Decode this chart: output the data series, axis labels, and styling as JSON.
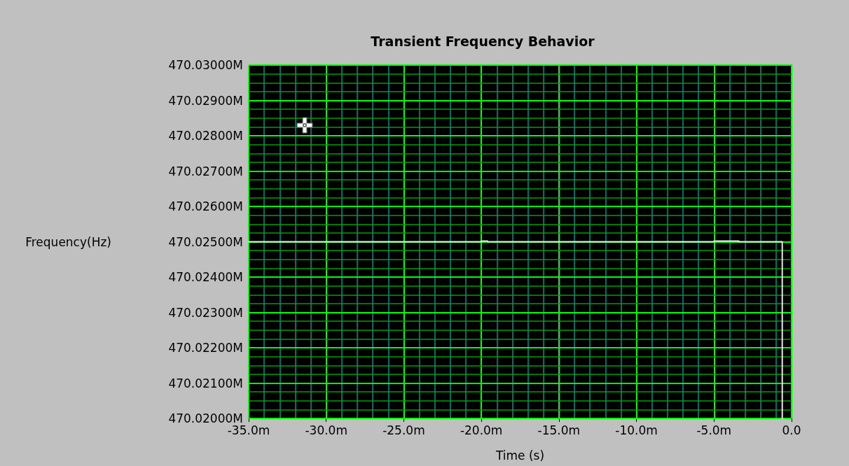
{
  "chart_data": {
    "type": "line",
    "title": "Transient Frequency Behavior",
    "xlabel": "Time (s)",
    "ylabel": "Frequency(Hz)",
    "series": [
      {
        "color": "#e8e8e8",
        "x": [
          -35,
          -20,
          -20,
          -19.6,
          -19.6,
          -5,
          -5,
          -3.4,
          -3.4,
          -0.6,
          -0.6
        ],
        "values": [
          470025000,
          470025000,
          470025020,
          470025020,
          470025000,
          470025000,
          470025020,
          470025020,
          470025000,
          470025000,
          470020000
        ]
      }
    ],
    "xlim": [
      -35,
      0
    ],
    "xticks": [
      {
        "value": -35,
        "label": "-35.0m"
      },
      {
        "value": -34,
        "label": null
      },
      {
        "value": -33,
        "label": null
      },
      {
        "value": -32,
        "label": null
      },
      {
        "value": -31,
        "label": null
      },
      {
        "value": -30,
        "label": "-30.0m"
      },
      {
        "value": -29,
        "label": null
      },
      {
        "value": -28,
        "label": null
      },
      {
        "value": -27,
        "label": null
      },
      {
        "value": -26,
        "label": null
      },
      {
        "value": -25,
        "label": "-25.0m"
      },
      {
        "value": -24,
        "label": null
      },
      {
        "value": -23,
        "label": null
      },
      {
        "value": -22,
        "label": null
      },
      {
        "value": -21,
        "label": null
      },
      {
        "value": -20,
        "label": "-20.0m"
      },
      {
        "value": -19,
        "label": null
      },
      {
        "value": -18,
        "label": null
      },
      {
        "value": -17,
        "label": null
      },
      {
        "value": -16,
        "label": null
      },
      {
        "value": -15,
        "label": "-15.0m"
      },
      {
        "value": -14,
        "label": null
      },
      {
        "value": -13,
        "label": null
      },
      {
        "value": -12,
        "label": null
      },
      {
        "value": -11,
        "label": null
      },
      {
        "value": -10,
        "label": "-10.0m"
      },
      {
        "value": -9,
        "label": null
      },
      {
        "value": -8,
        "label": null
      },
      {
        "value": -7,
        "label": null
      },
      {
        "value": -6,
        "label": null
      },
      {
        "value": -5,
        "label": "-5.0m"
      },
      {
        "value": -4,
        "label": null
      },
      {
        "value": -3,
        "label": null
      },
      {
        "value": -2,
        "label": null
      },
      {
        "value": -1,
        "label": null
      },
      {
        "value": 0,
        "label": "0.0"
      }
    ],
    "ylim": [
      470020000,
      470030000
    ],
    "yticks": [
      {
        "value": 470020000,
        "label": "470.02000M"
      },
      {
        "value": 470020250,
        "label": null
      },
      {
        "value": 470020500,
        "label": null
      },
      {
        "value": 470020750,
        "label": null
      },
      {
        "value": 470021000,
        "label": "470.02100M"
      },
      {
        "value": 470021250,
        "label": null
      },
      {
        "value": 470021500,
        "label": null
      },
      {
        "value": 470021750,
        "label": null
      },
      {
        "value": 470022000,
        "label": "470.02200M"
      },
      {
        "value": 470022250,
        "label": null
      },
      {
        "value": 470022500,
        "label": null
      },
      {
        "value": 470022750,
        "label": null
      },
      {
        "value": 470023000,
        "label": "470.02300M"
      },
      {
        "value": 470023250,
        "label": null
      },
      {
        "value": 470023500,
        "label": null
      },
      {
        "value": 470023750,
        "label": null
      },
      {
        "value": 470024000,
        "label": "470.02400M"
      },
      {
        "value": 470024250,
        "label": null
      },
      {
        "value": 470024500,
        "label": null
      },
      {
        "value": 470024750,
        "label": null
      },
      {
        "value": 470025000,
        "label": "470.02500M"
      },
      {
        "value": 470025250,
        "label": null
      },
      {
        "value": 470025500,
        "label": null
      },
      {
        "value": 470025750,
        "label": null
      },
      {
        "value": 470026000,
        "label": "470.02600M"
      },
      {
        "value": 470026250,
        "label": null
      },
      {
        "value": 470026500,
        "label": null
      },
      {
        "value": 470026750,
        "label": null
      },
      {
        "value": 470027000,
        "label": "470.02700M"
      },
      {
        "value": 470027250,
        "label": null
      },
      {
        "value": 470027500,
        "label": null
      },
      {
        "value": 470027750,
        "label": null
      },
      {
        "value": 470028000,
        "label": "470.02800M"
      },
      {
        "value": 470028250,
        "label": null
      },
      {
        "value": 470028500,
        "label": null
      },
      {
        "value": 470028750,
        "label": null
      },
      {
        "value": 470029000,
        "label": "470.02900M"
      },
      {
        "value": 470029250,
        "label": null
      },
      {
        "value": 470029500,
        "label": null
      },
      {
        "value": 470029750,
        "label": null
      },
      {
        "value": 470030000,
        "label": "470.03000M"
      }
    ],
    "grid": true,
    "marker": "none",
    "line_style": "solid"
  }
}
